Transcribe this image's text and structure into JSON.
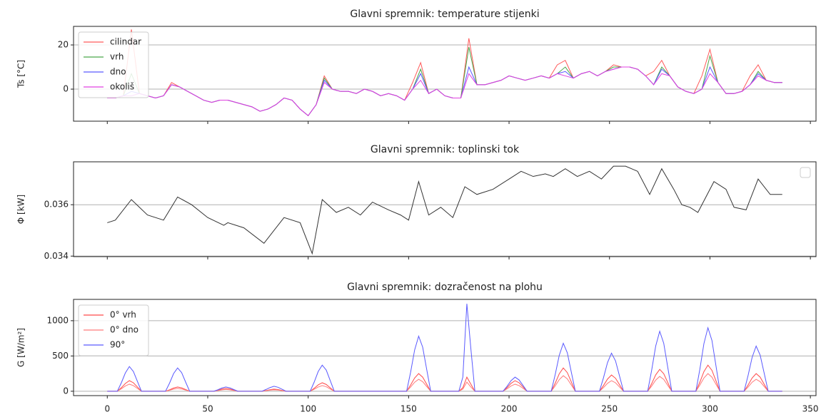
{
  "chart_data": [
    {
      "type": "line",
      "title": "Glavni spremnik: temperature stijenki",
      "ylabel": "Ts [°C]",
      "xlim": [
        -16.8,
        352.8
      ],
      "xticks": [
        0,
        50,
        100,
        150,
        200,
        250,
        300,
        350
      ],
      "show_xtick_labels": false,
      "ylim": [
        -14.5,
        28.4
      ],
      "yticks": [
        0,
        20
      ],
      "grid": true,
      "legend": "upper left",
      "x": [
        0,
        4,
        8,
        12,
        16,
        20,
        24,
        28,
        32,
        36,
        40,
        44,
        48,
        52,
        56,
        60,
        64,
        68,
        72,
        76,
        80,
        84,
        88,
        92,
        96,
        100,
        104,
        108,
        112,
        116,
        120,
        124,
        128,
        132,
        136,
        140,
        144,
        148,
        152,
        156,
        160,
        164,
        168,
        172,
        176,
        180,
        184,
        188,
        192,
        196,
        200,
        204,
        208,
        212,
        216,
        220,
        224,
        228,
        232,
        236,
        240,
        244,
        248,
        252,
        256,
        260,
        264,
        268,
        272,
        276,
        280,
        284,
        288,
        292,
        296,
        300,
        304,
        308,
        312,
        316,
        320,
        324,
        328,
        332,
        336
      ],
      "series": [
        {
          "name": "cilindar",
          "color": "#ff5a5a",
          "values": [
            -4,
            -4,
            -3,
            27,
            -2,
            -3,
            -4,
            -3,
            3,
            1,
            -1,
            -3,
            -5,
            -6,
            -5,
            -5,
            -6,
            -7,
            -8,
            -10,
            -9,
            -7,
            -4,
            -5,
            -9,
            -12,
            -7,
            6,
            0,
            -1,
            -1,
            -2,
            0,
            -1,
            -3,
            -2,
            -3,
            -5,
            3,
            12,
            -2,
            0,
            -3,
            -4,
            -4,
            23,
            2,
            2,
            3,
            4,
            6,
            5,
            4,
            5,
            6,
            5,
            11,
            13,
            5,
            7,
            8,
            6,
            8,
            11,
            10,
            10,
            9,
            6,
            8,
            13,
            6,
            1,
            -1,
            -2,
            6,
            18,
            3,
            -2,
            -2,
            -1,
            6,
            11,
            4,
            3,
            3
          ]
        },
        {
          "name": "vrh",
          "color": "#4aa64a",
          "values": [
            -4,
            -4,
            -3,
            7,
            -2,
            -3,
            -4,
            -3,
            2,
            1,
            -1,
            -3,
            -5,
            -6,
            -5,
            -5,
            -6,
            -7,
            -8,
            -10,
            -9,
            -7,
            -4,
            -5,
            -9,
            -12,
            -7,
            5,
            0,
            -1,
            -1,
            -2,
            0,
            -1,
            -3,
            -2,
            -3,
            -5,
            0,
            9,
            -2,
            0,
            -3,
            -4,
            -4,
            19,
            2,
            2,
            3,
            4,
            6,
            5,
            4,
            5,
            6,
            5,
            7,
            10,
            5,
            7,
            8,
            6,
            8,
            10,
            10,
            10,
            9,
            6,
            2,
            10,
            6,
            1,
            -1,
            -2,
            0,
            15,
            3,
            -2,
            -2,
            -1,
            2,
            8,
            4,
            3,
            3
          ]
        },
        {
          "name": "dno",
          "color": "#5a5aff",
          "values": [
            -4,
            -4,
            -3,
            -1,
            -2,
            -3,
            -4,
            -3,
            2,
            1,
            -1,
            -3,
            -5,
            -6,
            -5,
            -5,
            -6,
            -7,
            -8,
            -10,
            -9,
            -7,
            -4,
            -5,
            -9,
            -12,
            -7,
            4,
            0,
            -1,
            -1,
            -2,
            0,
            -1,
            -3,
            -2,
            -3,
            -5,
            0,
            7,
            -2,
            0,
            -3,
            -4,
            -4,
            10,
            2,
            2,
            3,
            4,
            6,
            5,
            4,
            5,
            6,
            5,
            7,
            8,
            5,
            7,
            8,
            6,
            8,
            9,
            10,
            10,
            9,
            6,
            2,
            9,
            6,
            1,
            -1,
            -2,
            0,
            10,
            3,
            -2,
            -2,
            -1,
            2,
            7,
            4,
            3,
            3
          ]
        },
        {
          "name": "okoliš",
          "color": "#e040e0",
          "values": [
            -4,
            -4,
            -3,
            -3,
            -2,
            -3,
            -4,
            -3,
            2,
            1,
            -1,
            -3,
            -5,
            -6,
            -5,
            -5,
            -6,
            -7,
            -8,
            -10,
            -9,
            -7,
            -4,
            -5,
            -9,
            -12,
            -7,
            3,
            0,
            -1,
            -1,
            -2,
            0,
            -1,
            -3,
            -2,
            -3,
            -5,
            0,
            4,
            -2,
            0,
            -3,
            -4,
            -4,
            7,
            2,
            2,
            3,
            4,
            6,
            5,
            4,
            5,
            6,
            5,
            7,
            6,
            5,
            7,
            8,
            6,
            8,
            9,
            10,
            10,
            9,
            6,
            2,
            7,
            6,
            1,
            -1,
            -2,
            0,
            7,
            3,
            -2,
            -2,
            -1,
            2,
            6,
            4,
            3,
            3
          ]
        }
      ]
    },
    {
      "type": "line",
      "title": "Glavni spremnik: toplinski tok",
      "ylabel": "Φ [kW]",
      "xlim": [
        -16.8,
        352.8
      ],
      "xticks": [
        0,
        50,
        100,
        150,
        200,
        250,
        300,
        350
      ],
      "show_xtick_labels": false,
      "ylim": [
        0.03398,
        0.03767
      ],
      "yticks": [
        0.034,
        0.036
      ],
      "grid": true,
      "legend": "upper right",
      "x": [
        0,
        4,
        12,
        20,
        28,
        35,
        42,
        50,
        58,
        60,
        68,
        78,
        88,
        96,
        102,
        107,
        114,
        120,
        126,
        132,
        140,
        146,
        150,
        155,
        160,
        166,
        172,
        178,
        184,
        192,
        200,
        206,
        212,
        218,
        222,
        228,
        234,
        240,
        246,
        252,
        258,
        264,
        270,
        276,
        282,
        286,
        290,
        294,
        302,
        308,
        312,
        318,
        324,
        330,
        336
      ],
      "series": [
        {
          "color": "#333333",
          "values": [
            0.0353,
            0.0354,
            0.0362,
            0.0356,
            0.0354,
            0.0363,
            0.036,
            0.0355,
            0.0352,
            0.0353,
            0.0351,
            0.0345,
            0.0355,
            0.0353,
            0.0341,
            0.0362,
            0.0357,
            0.0359,
            0.0356,
            0.0361,
            0.0358,
            0.0356,
            0.0354,
            0.0369,
            0.0356,
            0.0359,
            0.0355,
            0.0367,
            0.0364,
            0.0366,
            0.037,
            0.0373,
            0.0371,
            0.0372,
            0.0371,
            0.0374,
            0.0371,
            0.0373,
            0.037,
            0.0375,
            0.0375,
            0.0373,
            0.0364,
            0.0374,
            0.0366,
            0.036,
            0.0359,
            0.0357,
            0.0369,
            0.0366,
            0.0359,
            0.0358,
            0.037,
            0.0364,
            0.0364
          ]
        }
      ]
    },
    {
      "type": "line",
      "title": "Glavni spremnik: dozračenost na plohu",
      "ylabel": "G [W/m²]",
      "xlim": [
        -16.8,
        352.8
      ],
      "xticks": [
        0,
        50,
        100,
        150,
        200,
        250,
        300,
        350
      ],
      "show_xtick_labels": true,
      "ylim": [
        -62,
        1302
      ],
      "yticks": [
        0,
        500,
        1000
      ],
      "grid": true,
      "legend": "upper left",
      "x": [
        0,
        5,
        7,
        9,
        11,
        13,
        15,
        17,
        29,
        31,
        33,
        35,
        37,
        39,
        41,
        53,
        55,
        57,
        59,
        61,
        63,
        65,
        77,
        79,
        81,
        83,
        85,
        87,
        89,
        101,
        103,
        105,
        107,
        109,
        111,
        113,
        125,
        127,
        129,
        131,
        133,
        135,
        137,
        149,
        151,
        153,
        155,
        157,
        159,
        161,
        173,
        175,
        177,
        179,
        181,
        183,
        185,
        197,
        199,
        201,
        203,
        205,
        207,
        209,
        221,
        223,
        225,
        227,
        229,
        231,
        233,
        245,
        247,
        249,
        251,
        253,
        255,
        257,
        269,
        271,
        273,
        275,
        277,
        279,
        281,
        293,
        295,
        297,
        299,
        301,
        303,
        305,
        317,
        319,
        321,
        323,
        325,
        327,
        329,
        336
      ],
      "series": [
        {
          "name": "0° vrh",
          "color": "#ff4a4a",
          "values": [
            0,
            0,
            50,
            110,
            150,
            120,
            60,
            0,
            0,
            20,
            45,
            60,
            48,
            24,
            0,
            0,
            14,
            30,
            40,
            32,
            16,
            0,
            0,
            10,
            22,
            30,
            24,
            12,
            0,
            0,
            42,
            90,
            120,
            96,
            48,
            0,
            0,
            0,
            0,
            0,
            0,
            0,
            0,
            0,
            88,
            188,
            250,
            200,
            100,
            0,
            0,
            0,
            50,
            200,
            100,
            0,
            0,
            0,
            52,
            112,
            150,
            120,
            60,
            0,
            0,
            115,
            248,
            330,
            264,
            132,
            0,
            0,
            80,
            172,
            230,
            184,
            92,
            0,
            0,
            108,
            232,
            310,
            248,
            124,
            0,
            0,
            130,
            278,
            370,
            296,
            148,
            0,
            0,
            88,
            188,
            250,
            200,
            100,
            0,
            0
          ]
        },
        {
          "name": "0° dno",
          "color": "#ff7a7a",
          "values": [
            0,
            0,
            35,
            75,
            100,
            80,
            40,
            0,
            0,
            14,
            30,
            40,
            32,
            16,
            0,
            0,
            9,
            19,
            25,
            20,
            10,
            0,
            0,
            7,
            15,
            20,
            16,
            8,
            0,
            0,
            28,
            60,
            80,
            64,
            32,
            0,
            0,
            0,
            0,
            0,
            0,
            0,
            0,
            0,
            60,
            128,
            170,
            136,
            68,
            0,
            0,
            0,
            30,
            130,
            60,
            0,
            0,
            0,
            35,
            75,
            100,
            80,
            40,
            0,
            0,
            77,
            165,
            220,
            176,
            88,
            0,
            0,
            52,
            112,
            150,
            120,
            60,
            0,
            0,
            74,
            158,
            210,
            168,
            84,
            0,
            0,
            88,
            188,
            250,
            200,
            100,
            0,
            0,
            60,
            128,
            170,
            136,
            68,
            0,
            0
          ]
        },
        {
          "name": "90°",
          "color": "#5a5aff",
          "values": [
            0,
            0,
            120,
            260,
            350,
            280,
            140,
            0,
            0,
            115,
            250,
            330,
            265,
            130,
            0,
            0,
            20,
            45,
            60,
            48,
            24,
            0,
            0,
            25,
            52,
            70,
            56,
            28,
            0,
            0,
            130,
            280,
            370,
            300,
            150,
            0,
            0,
            0,
            0,
            0,
            0,
            0,
            0,
            0,
            270,
            585,
            780,
            625,
            310,
            0,
            0,
            0,
            200,
            1240,
            600,
            0,
            0,
            0,
            70,
            150,
            200,
            160,
            80,
            0,
            0,
            240,
            510,
            680,
            545,
            270,
            0,
            0,
            190,
            405,
            540,
            430,
            215,
            0,
            0,
            300,
            640,
            850,
            680,
            340,
            0,
            0,
            315,
            675,
            900,
            720,
            360,
            0,
            0,
            225,
            480,
            640,
            512,
            256,
            0,
            0
          ]
        }
      ]
    }
  ]
}
